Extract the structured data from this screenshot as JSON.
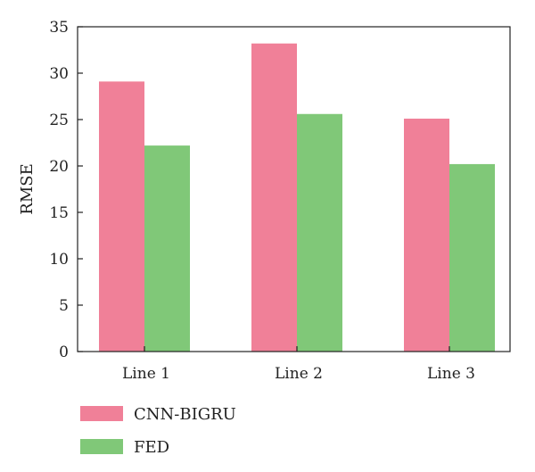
{
  "chart_data": {
    "type": "bar",
    "title": "",
    "xlabel": "",
    "ylabel": "RMSE",
    "categories": [
      "Line 1",
      "Line 2",
      "Line 3"
    ],
    "series": [
      {
        "name": "CNN-BIGRU",
        "values": [
          29.1,
          33.2,
          25.1
        ],
        "color": "#f08098"
      },
      {
        "name": "FED",
        "values": [
          22.2,
          25.6,
          20.2
        ],
        "color": "#80c878"
      }
    ],
    "ylim": [
      0,
      35
    ],
    "yticks": [
      "0",
      "5",
      "10",
      "15",
      "20",
      "25",
      "30",
      "35"
    ],
    "grid": false,
    "legend_position": "bottom-left"
  }
}
